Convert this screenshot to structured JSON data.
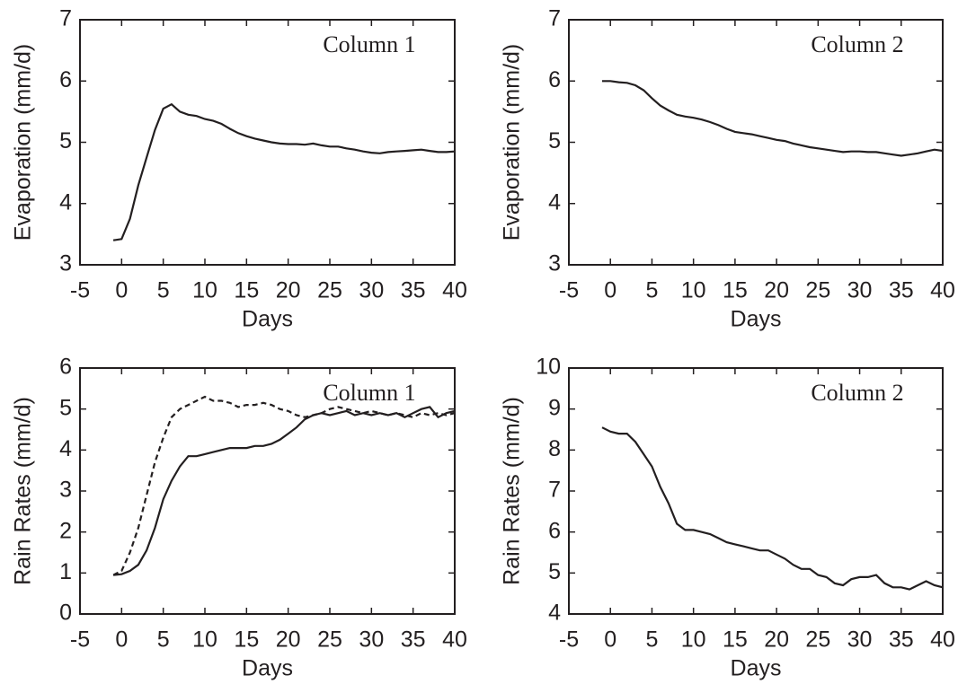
{
  "chart_data": [
    {
      "type": "line",
      "xlabel": "Days",
      "ylabel": "Evaporation (mm/d)",
      "annotation": "Column 1",
      "x": [
        -1,
        0,
        1,
        2,
        3,
        4,
        5,
        6,
        7,
        8,
        9,
        10,
        11,
        12,
        13,
        14,
        15,
        16,
        17,
        18,
        19,
        20,
        21,
        22,
        23,
        24,
        25,
        26,
        27,
        28,
        29,
        30,
        31,
        32,
        33,
        34,
        35,
        36,
        37,
        38,
        39,
        40
      ],
      "series": [
        {
          "color": "#231f20",
          "style": "solid",
          "values": [
            3.4,
            3.42,
            3.75,
            4.3,
            4.75,
            5.2,
            5.55,
            5.62,
            5.5,
            5.45,
            5.43,
            5.38,
            5.35,
            5.3,
            5.22,
            5.15,
            5.1,
            5.06,
            5.03,
            5.0,
            4.98,
            4.97,
            4.97,
            4.96,
            4.98,
            4.95,
            4.93,
            4.93,
            4.9,
            4.88,
            4.85,
            4.83,
            4.82,
            4.84,
            4.85,
            4.86,
            4.87,
            4.88,
            4.86,
            4.84,
            4.84,
            4.85
          ]
        }
      ],
      "xlim": [
        -5,
        40
      ],
      "ylim": [
        3,
        7
      ],
      "xticks": [
        -5,
        0,
        5,
        10,
        15,
        20,
        25,
        30,
        35,
        40
      ],
      "yticks": [
        3,
        4,
        5,
        6,
        7
      ]
    },
    {
      "type": "line",
      "xlabel": "Days",
      "ylabel": "Evaporation (mm/d)",
      "annotation": "Column 2",
      "x": [
        -1,
        0,
        1,
        2,
        3,
        4,
        5,
        6,
        7,
        8,
        9,
        10,
        11,
        12,
        13,
        14,
        15,
        16,
        17,
        18,
        19,
        20,
        21,
        22,
        23,
        24,
        25,
        26,
        27,
        28,
        29,
        30,
        31,
        32,
        33,
        34,
        35,
        36,
        37,
        38,
        39,
        40
      ],
      "series": [
        {
          "color": "#231f20",
          "style": "solid",
          "values": [
            6.0,
            6.0,
            5.98,
            5.97,
            5.93,
            5.85,
            5.72,
            5.6,
            5.52,
            5.45,
            5.42,
            5.4,
            5.37,
            5.33,
            5.28,
            5.22,
            5.17,
            5.15,
            5.13,
            5.1,
            5.07,
            5.04,
            5.02,
            4.98,
            4.95,
            4.92,
            4.9,
            4.88,
            4.86,
            4.84,
            4.85,
            4.85,
            4.84,
            4.84,
            4.82,
            4.8,
            4.78,
            4.8,
            4.82,
            4.85,
            4.88,
            4.86
          ]
        }
      ],
      "xlim": [
        -5,
        40
      ],
      "ylim": [
        3,
        7
      ],
      "xticks": [
        -5,
        0,
        5,
        10,
        15,
        20,
        25,
        30,
        35,
        40
      ],
      "yticks": [
        3,
        4,
        5,
        6,
        7
      ]
    },
    {
      "type": "line",
      "xlabel": "Days",
      "ylabel": "Rain Rates (mm/d)",
      "annotation": "Column 1",
      "x": [
        -1,
        0,
        1,
        2,
        3,
        4,
        5,
        6,
        7,
        8,
        9,
        10,
        11,
        12,
        13,
        14,
        15,
        16,
        17,
        18,
        19,
        20,
        21,
        22,
        23,
        24,
        25,
        26,
        27,
        28,
        29,
        30,
        31,
        32,
        33,
        34,
        35,
        36,
        37,
        38,
        39,
        40
      ],
      "series": [
        {
          "color": "#231f20",
          "style": "solid",
          "values": [
            0.95,
            0.97,
            1.05,
            1.2,
            1.55,
            2.1,
            2.8,
            3.25,
            3.6,
            3.85,
            3.85,
            3.9,
            3.95,
            4.0,
            4.05,
            4.05,
            4.05,
            4.1,
            4.1,
            4.15,
            4.25,
            4.4,
            4.55,
            4.75,
            4.85,
            4.9,
            4.85,
            4.9,
            4.95,
            4.85,
            4.9,
            4.85,
            4.9,
            4.85,
            4.9,
            4.8,
            4.9,
            5.0,
            5.05,
            4.8,
            4.9,
            4.95
          ]
        },
        {
          "color": "#231f20",
          "style": "dashed",
          "values": [
            0.95,
            1.05,
            1.5,
            2.1,
            2.9,
            3.7,
            4.3,
            4.8,
            5.0,
            5.1,
            5.2,
            5.3,
            5.2,
            5.2,
            5.15,
            5.05,
            5.1,
            5.1,
            5.15,
            5.1,
            5.0,
            4.95,
            4.85,
            4.8,
            4.85,
            4.9,
            5.0,
            5.05,
            5.0,
            4.95,
            4.9,
            4.95,
            4.9,
            4.85,
            4.9,
            4.85,
            4.8,
            4.9,
            4.85,
            4.9,
            4.85,
            4.9
          ]
        }
      ],
      "xlim": [
        -5,
        40
      ],
      "ylim": [
        0,
        6
      ],
      "xticks": [
        -5,
        0,
        5,
        10,
        15,
        20,
        25,
        30,
        35,
        40
      ],
      "yticks": [
        0,
        1,
        2,
        3,
        4,
        5,
        6
      ]
    },
    {
      "type": "line",
      "xlabel": "Days",
      "ylabel": "Rain Rates (mm/d)",
      "annotation": "Column 2",
      "x": [
        -1,
        0,
        1,
        2,
        3,
        4,
        5,
        6,
        7,
        8,
        9,
        10,
        11,
        12,
        13,
        14,
        15,
        16,
        17,
        18,
        19,
        20,
        21,
        22,
        23,
        24,
        25,
        26,
        27,
        28,
        29,
        30,
        31,
        32,
        33,
        34,
        35,
        36,
        37,
        38,
        39,
        40
      ],
      "series": [
        {
          "color": "#231f20",
          "style": "solid",
          "values": [
            8.55,
            8.45,
            8.4,
            8.4,
            8.2,
            7.9,
            7.6,
            7.1,
            6.7,
            6.2,
            6.05,
            6.05,
            6.0,
            5.95,
            5.85,
            5.75,
            5.7,
            5.65,
            5.6,
            5.55,
            5.55,
            5.45,
            5.35,
            5.2,
            5.1,
            5.1,
            4.95,
            4.9,
            4.75,
            4.7,
            4.85,
            4.9,
            4.9,
            4.95,
            4.75,
            4.65,
            4.65,
            4.6,
            4.7,
            4.8,
            4.7,
            4.65
          ]
        }
      ],
      "xlim": [
        -5,
        40
      ],
      "ylim": [
        4,
        10
      ],
      "xticks": [
        -5,
        0,
        5,
        10,
        15,
        20,
        25,
        30,
        35,
        40
      ],
      "yticks": [
        4,
        5,
        6,
        7,
        8,
        9,
        10
      ]
    }
  ]
}
